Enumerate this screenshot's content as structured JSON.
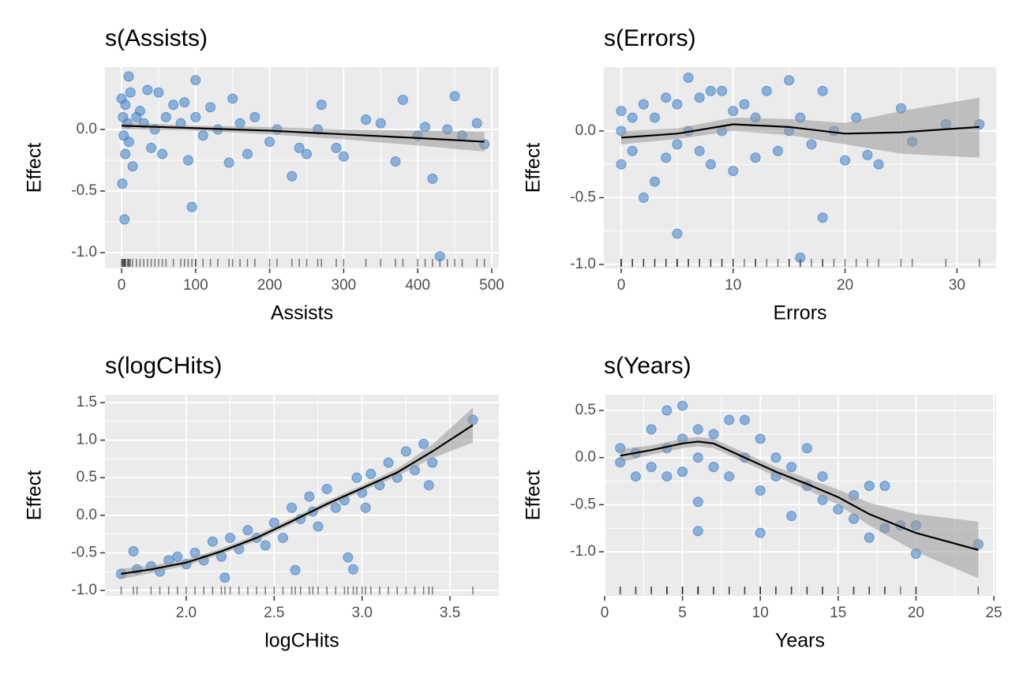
{
  "chart_data": [
    {
      "type": "scatter",
      "title": "s(Assists)",
      "x_label": "Assists",
      "y_label": "Effect",
      "xlim": [
        -22.4,
        509.6
      ],
      "ylim": [
        -1.128,
        0.506
      ],
      "xticks": [
        0,
        100,
        200,
        300,
        400,
        500
      ],
      "yticks": [
        {
          "value": -1,
          "label": "-1.0"
        },
        -0.5,
        {
          "value": 0,
          "label": "0.0"
        }
      ],
      "grid": true,
      "points": {
        "color": "#3a7dc9",
        "x": [
          0,
          2,
          3,
          5,
          5,
          9.6,
          1,
          4,
          8,
          10,
          12,
          15,
          20,
          25,
          30,
          35,
          40,
          45,
          50,
          55,
          60,
          70,
          80,
          85,
          90,
          95,
          100,
          100,
          110,
          120,
          130,
          145,
          150,
          160,
          170,
          180,
          200,
          210,
          230,
          240,
          250,
          265,
          270,
          290,
          300,
          330,
          350,
          370,
          380,
          400,
          410,
          420,
          430,
          440,
          450,
          460,
          480,
          490
        ],
        "y": [
          0.25,
          0.1,
          -0.05,
          0.2,
          -0.2,
          0.43,
          -0.44,
          -0.73,
          0.05,
          -0.1,
          0.3,
          -0.3,
          0.1,
          0.15,
          0.05,
          0.32,
          -0.15,
          0,
          0.3,
          -0.2,
          0.1,
          0.2,
          0.05,
          0.22,
          -0.25,
          -0.63,
          0.4,
          0.1,
          -0.05,
          0.18,
          0,
          -0.27,
          0.25,
          0.05,
          -0.2,
          0.1,
          -0.1,
          0,
          -0.38,
          -0.15,
          -0.2,
          0,
          0.2,
          -0.15,
          -0.22,
          0.08,
          0.05,
          -0.26,
          0.24,
          -0.05,
          0.02,
          -0.4,
          -1.03,
          0,
          0.27,
          -0.05,
          0.05,
          -0.12
        ]
      },
      "smooth": {
        "color": "#000000",
        "x": [
          0,
          100,
          200,
          300,
          400,
          490
        ],
        "y": [
          0.03,
          0.01,
          -0.01,
          -0.04,
          -0.07,
          -0.1
        ],
        "lower": [
          0,
          -0.01,
          -0.04,
          -0.08,
          -0.13,
          -0.18
        ],
        "upper": [
          0.06,
          0.03,
          0.02,
          0,
          -0.01,
          -0.02
        ]
      }
    },
    {
      "type": "scatter",
      "title": "s(Errors)",
      "x_label": "Errors",
      "y_label": "Effect",
      "xlim": [
        -1.55,
        33.5
      ],
      "ylim": [
        -1.03,
        0.479
      ],
      "xticks": [
        0,
        10,
        20,
        30
      ],
      "yticks": [
        {
          "value": -1,
          "label": "-1.0"
        },
        -0.5,
        {
          "value": 0,
          "label": "0.0"
        }
      ],
      "grid": true,
      "points": {
        "color": "#3a7dc9",
        "x": [
          0,
          0,
          0,
          1,
          1,
          2,
          2,
          3,
          3,
          4,
          4,
          5,
          5,
          5,
          6,
          6,
          7,
          7,
          8,
          8,
          9,
          9,
          10,
          10,
          11,
          12,
          12,
          13,
          14,
          15,
          15,
          16,
          16,
          17,
          18,
          18,
          19,
          20,
          21,
          22,
          23,
          25,
          26,
          29,
          32
        ],
        "y": [
          0.15,
          -0.25,
          0,
          0.1,
          -0.15,
          -0.5,
          0.2,
          -0.38,
          0.1,
          0.25,
          -0.2,
          -0.77,
          0.2,
          -0.1,
          0.4,
          0,
          0.25,
          -0.15,
          0.3,
          -0.25,
          0.3,
          0,
          -0.3,
          0.15,
          0.2,
          0.1,
          -0.2,
          0.3,
          -0.15,
          0.38,
          0,
          -0.95,
          0.1,
          -0.1,
          -0.65,
          0.3,
          0,
          -0.22,
          0.1,
          -0.18,
          -0.25,
          0.17,
          -0.08,
          0.05,
          0.05
        ]
      },
      "smooth": {
        "color": "#000000",
        "x": [
          0,
          5,
          10,
          15,
          20,
          25,
          32
        ],
        "y": [
          -0.05,
          -0.02,
          0.05,
          0.03,
          -0.02,
          -0.01,
          0.03
        ],
        "lower": [
          -0.1,
          -0.06,
          0,
          -0.03,
          -0.1,
          -0.17,
          -0.2
        ],
        "upper": [
          0,
          0.02,
          0.1,
          0.09,
          0.06,
          0.15,
          0.25
        ]
      }
    },
    {
      "type": "scatter",
      "title": "s(logCHits)",
      "x_label": "logCHits",
      "y_label": "Effect",
      "xlim": [
        1.538,
        3.778
      ],
      "ylim": [
        -1.074,
        1.605
      ],
      "xticks": [
        {
          "value": 2,
          "label": "2.0"
        },
        2.5,
        {
          "value": 3,
          "label": "3.0"
        },
        3.5
      ],
      "yticks": [
        {
          "value": -1,
          "label": "-1.0"
        },
        -0.5,
        {
          "value": 0,
          "label": "0.0"
        },
        0.5,
        {
          "value": 1,
          "label": "1.0"
        },
        1.5
      ],
      "grid": true,
      "points": {
        "color": "#3a7dc9",
        "x": [
          1.63,
          1.7,
          1.72,
          1.8,
          1.85,
          1.9,
          1.95,
          2.0,
          2.05,
          2.1,
          2.15,
          2.2,
          2.22,
          2.25,
          2.3,
          2.35,
          2.4,
          2.45,
          2.5,
          2.55,
          2.6,
          2.62,
          2.65,
          2.7,
          2.72,
          2.75,
          2.8,
          2.85,
          2.9,
          2.92,
          2.95,
          2.97,
          3.0,
          3.02,
          3.05,
          3.1,
          3.15,
          3.2,
          3.25,
          3.3,
          3.35,
          3.38,
          3.4,
          3.63
        ],
        "y": [
          -0.78,
          -0.48,
          -0.72,
          -0.68,
          -0.75,
          -0.6,
          -0.55,
          -0.65,
          -0.5,
          -0.6,
          -0.35,
          -0.55,
          -0.83,
          -0.3,
          -0.45,
          -0.2,
          -0.3,
          -0.4,
          -0.1,
          -0.3,
          0.1,
          -0.73,
          -0.05,
          0.25,
          0.05,
          -0.15,
          0.35,
          0.1,
          0.2,
          -0.56,
          -0.72,
          0.5,
          0.3,
          0.1,
          0.55,
          0.4,
          0.7,
          0.5,
          0.85,
          0.6,
          0.95,
          0.4,
          0.7,
          1.27
        ]
      },
      "smooth": {
        "color": "#000000",
        "x": [
          1.63,
          1.8,
          2.0,
          2.2,
          2.4,
          2.6,
          2.8,
          3.0,
          3.2,
          3.4,
          3.63
        ],
        "y": [
          -0.78,
          -0.72,
          -0.63,
          -0.48,
          -0.3,
          -0.08,
          0.15,
          0.36,
          0.57,
          0.85,
          1.2
        ],
        "lower": [
          -0.85,
          -0.77,
          -0.67,
          -0.52,
          -0.34,
          -0.12,
          0.11,
          0.32,
          0.52,
          0.76,
          0.97
        ],
        "upper": [
          -0.71,
          -0.67,
          -0.59,
          -0.44,
          -0.26,
          -0.04,
          0.19,
          0.4,
          0.62,
          0.94,
          1.43
        ]
      }
    },
    {
      "type": "scatter",
      "title": "s(Years)",
      "x_label": "Years",
      "y_label": "Effect",
      "xlim": [
        -0.05,
        25.15
      ],
      "ylim": [
        -1.469,
        0.668
      ],
      "xticks": [
        0,
        5,
        10,
        15,
        20,
        25
      ],
      "yticks": [
        {
          "value": -1,
          "label": "-1.0"
        },
        -0.5,
        {
          "value": 0,
          "label": "0.0"
        },
        0.5
      ],
      "grid": true,
      "points": {
        "color": "#3a7dc9",
        "x": [
          1,
          1,
          2,
          2,
          3,
          3,
          4,
          4,
          4,
          5,
          5,
          5,
          6,
          6,
          6,
          6,
          7,
          7,
          8,
          8,
          9,
          9,
          10,
          10,
          10,
          11,
          11,
          12,
          12,
          13,
          13,
          14,
          14,
          15,
          16,
          16,
          17,
          17,
          18,
          18,
          19,
          20,
          20,
          24
        ],
        "y": [
          0.1,
          -0.05,
          -0.2,
          0.05,
          0.3,
          -0.1,
          0.5,
          -0.2,
          0.1,
          0.55,
          -0.15,
          0.2,
          0.3,
          -0.47,
          -0.78,
          0,
          0.25,
          -0.1,
          0.4,
          -0.2,
          0.4,
          0,
          0.2,
          -0.35,
          -0.8,
          0,
          -0.2,
          -0.1,
          -0.62,
          0.1,
          -0.3,
          -0.2,
          -0.45,
          -0.55,
          -0.4,
          -0.65,
          -0.3,
          -0.85,
          -0.3,
          -0.75,
          -0.72,
          -0.72,
          -1.02,
          -0.92
        ]
      },
      "smooth": {
        "color": "#000000",
        "x": [
          1,
          3,
          5,
          6,
          7,
          9,
          11,
          13,
          15,
          17,
          20,
          24
        ],
        "y": [
          0.02,
          0.08,
          0.15,
          0.17,
          0.15,
          0,
          -0.15,
          -0.28,
          -0.42,
          -0.6,
          -0.8,
          -0.98
        ],
        "lower": [
          -0.05,
          0.03,
          0.1,
          0.12,
          0.1,
          -0.05,
          -0.2,
          -0.34,
          -0.5,
          -0.72,
          -1,
          -1.28
        ],
        "upper": [
          0.09,
          0.13,
          0.2,
          0.22,
          0.2,
          0.05,
          -0.1,
          -0.22,
          -0.34,
          -0.48,
          -0.6,
          -0.68
        ]
      }
    }
  ]
}
